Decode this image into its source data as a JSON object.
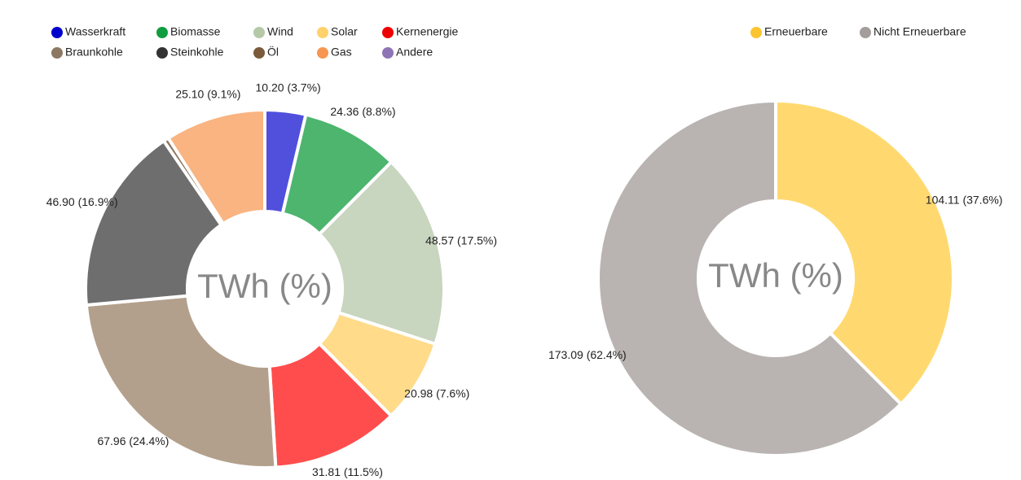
{
  "chart_data": [
    {
      "type": "donut",
      "center_label": "TWh (%)",
      "categories": [
        "Wasserkraft",
        "Biomasse",
        "Wind",
        "Solar",
        "Kernenergie",
        "Braunkohle",
        "Steinkohle",
        "Öl",
        "Gas",
        "Andere"
      ],
      "values": [
        10.2,
        24.36,
        48.57,
        20.98,
        31.81,
        67.96,
        46.9,
        1.32,
        25.1,
        0
      ],
      "value_labels": [
        "10.20 (3.7%)",
        "24.36 (8.8%)",
        "48.57 (17.5%)",
        "20.98 (7.6%)",
        "31.81 (11.5%)",
        "67.96 (24.4%)",
        "46.90 (16.9%)",
        null,
        "25.10 (9.1%)",
        null
      ],
      "colors": [
        "#5050dd",
        "#4db56e",
        "#c8d5bf",
        "#ffdb8a",
        "#ff4d4d",
        "#b3a08c",
        "#6e6e6e",
        "#8c735a",
        "#f9b481",
        "#9c85c0"
      ],
      "legend_colors": [
        "#0000cc",
        "#0f9d3f",
        "#b5c9a8",
        "#ffd16b",
        "#ee0000",
        "#8d7862",
        "#333333",
        "#7a5a3a",
        "#f79650",
        "#8e74b5"
      ]
    },
    {
      "type": "donut",
      "center_label": "TWh (%)",
      "categories": [
        "Erneuerbare",
        "Nicht Erneuerbare"
      ],
      "values": [
        104.11,
        173.09
      ],
      "value_labels": [
        "104.11 (37.6%)",
        "173.09 (62.4%)"
      ],
      "colors": [
        "#ffd970",
        "#b9b4b2"
      ],
      "legend_colors": [
        "#fbc431",
        "#a39d9b"
      ]
    }
  ]
}
